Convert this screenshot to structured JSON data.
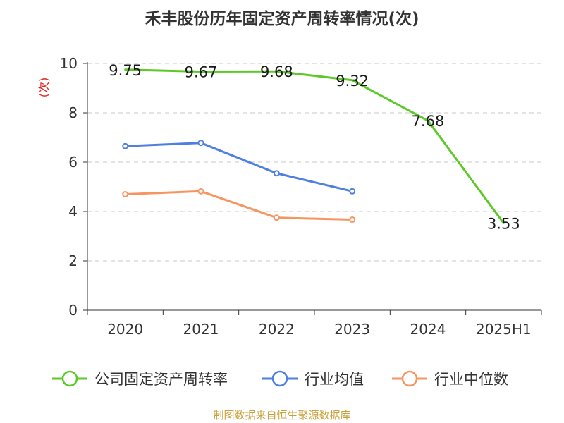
{
  "colors": {
    "company": "#5cc929",
    "industry_mean": "#4f7fdf",
    "industry_median": "#f79560",
    "grid": "#c8c8c8",
    "axis": "#333333",
    "ylabel": "#e02020",
    "source": "#c9a23d"
  },
  "chart_data": {
    "type": "line",
    "title": "禾丰股份历年固定资产周转率情况(次)",
    "ylabel": "(次)",
    "xlabel": "",
    "categories": [
      "2020",
      "2021",
      "2022",
      "2023",
      "2024",
      "2025H1"
    ],
    "ylim": [
      0,
      10
    ],
    "yticks": [
      0,
      2,
      4,
      6,
      8,
      10
    ],
    "grid": true,
    "legend_position": "bottom",
    "series": [
      {
        "name": "公司固定资产周转率",
        "values": [
          9.75,
          9.67,
          9.68,
          9.32,
          7.68,
          3.53
        ],
        "color_key": "company",
        "show_labels": true,
        "show_markers": false
      },
      {
        "name": "行业均值",
        "values": [
          6.65,
          6.78,
          5.55,
          4.82,
          null,
          null
        ],
        "color_key": "industry_mean",
        "show_labels": false,
        "show_markers": true
      },
      {
        "name": "行业中位数",
        "values": [
          4.7,
          4.82,
          3.75,
          3.67,
          null,
          null
        ],
        "color_key": "industry_median",
        "show_labels": false,
        "show_markers": true
      }
    ],
    "data_labels": [
      "9.75",
      "9.67",
      "9.68",
      "9.32",
      "7.68",
      "3.53"
    ]
  },
  "source": "制图数据来自恒生聚源数据库"
}
